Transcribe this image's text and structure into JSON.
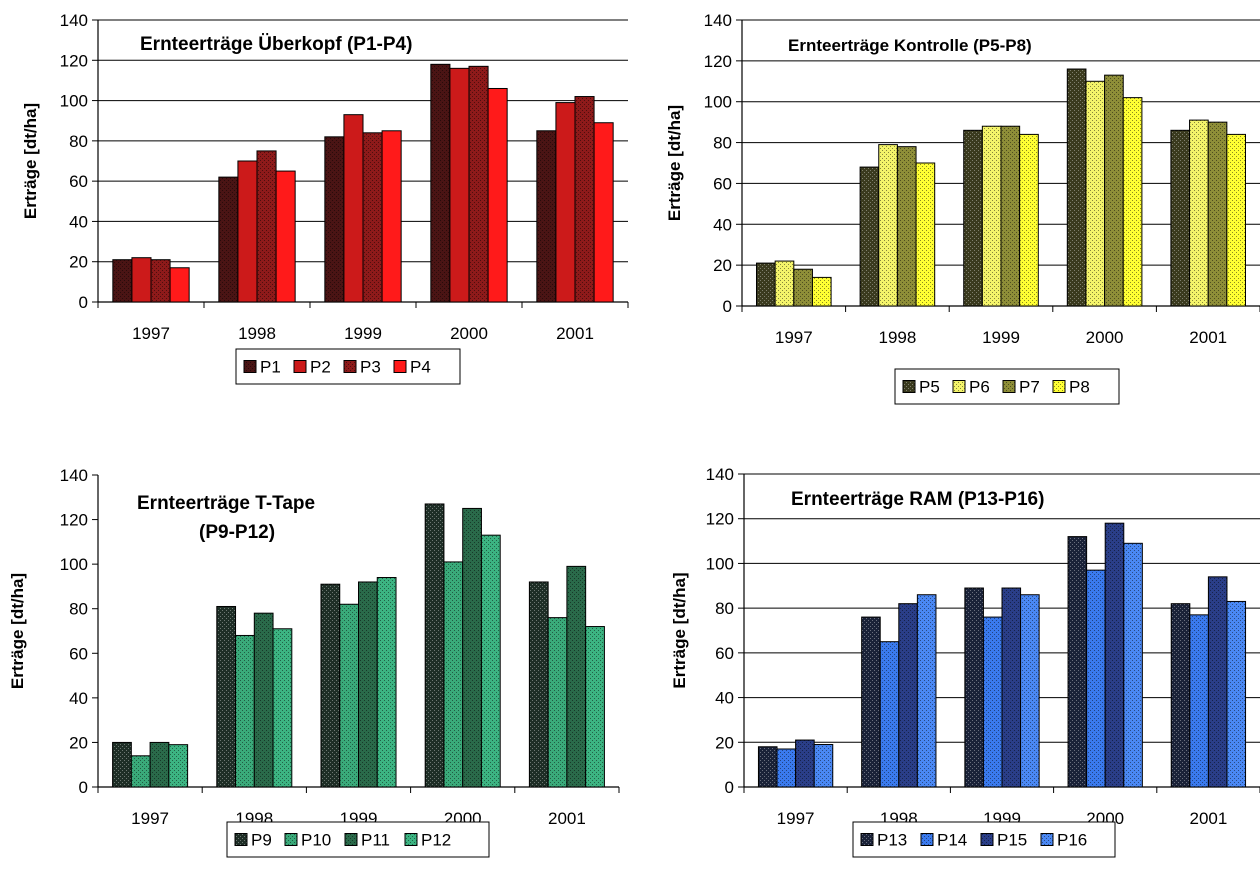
{
  "chart_data": [
    {
      "type": "bar",
      "title": "Ernteerträge Überkopf (P1-P4)",
      "title_lines": [
        "Ernteerträge Überkopf (P1-P4)"
      ],
      "ylabel": "Erträge [dt/ha]",
      "xlabel": "",
      "ylim": [
        0,
        140
      ],
      "yticks": [
        0,
        20,
        40,
        60,
        80,
        100,
        120,
        140
      ],
      "grid": true,
      "legend_position": "bottom",
      "categories": [
        "1997",
        "1998",
        "1999",
        "2000",
        "2001"
      ],
      "series": [
        {
          "name": "P1",
          "color": "#4a1414",
          "pattern": "dots-dark",
          "values": [
            21,
            62,
            82,
            118,
            85
          ]
        },
        {
          "name": "P2",
          "color": "#cc1a1a",
          "pattern": "solid",
          "values": [
            22,
            70,
            93,
            116,
            99
          ]
        },
        {
          "name": "P3",
          "color": "#8e1a1a",
          "pattern": "dots-dark",
          "values": [
            21,
            75,
            84,
            117,
            102
          ]
        },
        {
          "name": "P4",
          "color": "#ff1a1a",
          "pattern": "solid",
          "values": [
            17,
            65,
            85,
            106,
            89
          ]
        }
      ]
    },
    {
      "type": "bar",
      "title": "Ernteerträge Kontrolle (P5-P8)",
      "title_lines": [
        "Ernteerträge Kontrolle (P5-P8)"
      ],
      "ylabel": "Erträge [dt/ha]",
      "xlabel": "",
      "ylim": [
        0,
        140
      ],
      "yticks": [
        0,
        20,
        40,
        60,
        80,
        100,
        120,
        140
      ],
      "grid": true,
      "legend_position": "bottom",
      "categories": [
        "1997",
        "1998",
        "1999",
        "2000",
        "2001"
      ],
      "series": [
        {
          "name": "P5",
          "color": "#3a3a1e",
          "pattern": "dots-light",
          "values": [
            21,
            68,
            86,
            116,
            86
          ]
        },
        {
          "name": "P6",
          "color": "#f4f46a",
          "pattern": "dots-dark",
          "values": [
            22,
            79,
            88,
            110,
            91
          ]
        },
        {
          "name": "P7",
          "color": "#8e8e38",
          "pattern": "dots-dark",
          "values": [
            18,
            78,
            88,
            113,
            90
          ]
        },
        {
          "name": "P8",
          "color": "#ffff33",
          "pattern": "dots-dark",
          "values": [
            14,
            70,
            84,
            102,
            84
          ]
        }
      ]
    },
    {
      "type": "bar",
      "title": "Ernteerträge T-Tape (P9-P12)",
      "title_lines": [
        "Ernteerträge T-Tape",
        "(P9-P12)"
      ],
      "ylabel": "Erträge [dt/ha]",
      "xlabel": "",
      "ylim": [
        0,
        140
      ],
      "yticks": [
        0,
        20,
        40,
        60,
        80,
        100,
        120,
        140
      ],
      "grid": false,
      "legend_position": "bottom",
      "categories": [
        "1997",
        "1998",
        "1999",
        "2000",
        "2001"
      ],
      "series": [
        {
          "name": "P9",
          "color": "#1e2e26",
          "pattern": "dots-light",
          "values": [
            20,
            81,
            91,
            127,
            92
          ]
        },
        {
          "name": "P10",
          "color": "#3aaa7a",
          "pattern": "dots-dark",
          "values": [
            14,
            68,
            82,
            101,
            76
          ]
        },
        {
          "name": "P11",
          "color": "#2a6a4a",
          "pattern": "dots-dark",
          "values": [
            20,
            78,
            92,
            125,
            99
          ]
        },
        {
          "name": "P12",
          "color": "#3cb482",
          "pattern": "dots-dark",
          "values": [
            19,
            71,
            94,
            113,
            72
          ]
        }
      ]
    },
    {
      "type": "bar",
      "title": "Ernteerträge RAM (P13-P16)",
      "title_lines": [
        "Ernteerträge RAM (P13-P16)"
      ],
      "ylabel": "Erträge [dt/ha]",
      "xlabel": "",
      "ylim": [
        0,
        140
      ],
      "yticks": [
        0,
        20,
        40,
        60,
        80,
        100,
        120,
        140
      ],
      "grid": true,
      "legend_position": "bottom",
      "categories": [
        "1997",
        "1998",
        "1999",
        "2000",
        "2001"
      ],
      "series": [
        {
          "name": "P13",
          "color": "#1a2238",
          "pattern": "dots-light",
          "values": [
            18,
            76,
            89,
            112,
            82
          ]
        },
        {
          "name": "P14",
          "color": "#3a7aee",
          "pattern": "dots-dark",
          "values": [
            17,
            65,
            76,
            97,
            77
          ]
        },
        {
          "name": "P15",
          "color": "#2a3e88",
          "pattern": "dots-dark",
          "values": [
            21,
            82,
            89,
            118,
            94
          ]
        },
        {
          "name": "P16",
          "color": "#4a88f4",
          "pattern": "dots-dark",
          "values": [
            19,
            86,
            86,
            109,
            83
          ]
        }
      ]
    }
  ]
}
